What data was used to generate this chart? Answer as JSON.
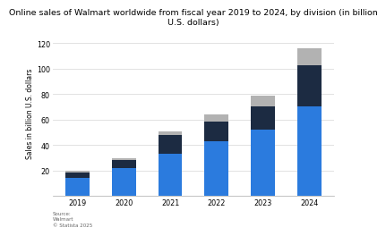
{
  "title": "Online sales of Walmart worldwide from fiscal year 2019 to 2024, by division (in billion\nU.S. dollars)",
  "years": [
    "2019",
    "2020",
    "2021",
    "2022",
    "2023",
    "2024"
  ],
  "walmart_us": [
    14.0,
    21.5,
    33.0,
    43.0,
    52.0,
    70.0
  ],
  "sams_intl": [
    4.5,
    6.5,
    15.0,
    15.5,
    18.0,
    33.0
  ],
  "other": [
    1.5,
    1.5,
    2.5,
    5.5,
    9.0,
    13.0
  ],
  "color_walmart": "#2b7bde",
  "color_sams": "#1c2b42",
  "color_other": "#b2b2b2",
  "ylabel": "Sales in billion U.S. dollars",
  "ylim": [
    0,
    130
  ],
  "yticks": [
    20,
    40,
    60,
    80,
    100,
    120
  ],
  "source_text": "Source:\nWalmart\n© Statista 2025",
  "bg_color": "#ffffff",
  "title_fontsize": 6.8,
  "axis_fontsize": 5.5,
  "tick_fontsize": 5.8
}
